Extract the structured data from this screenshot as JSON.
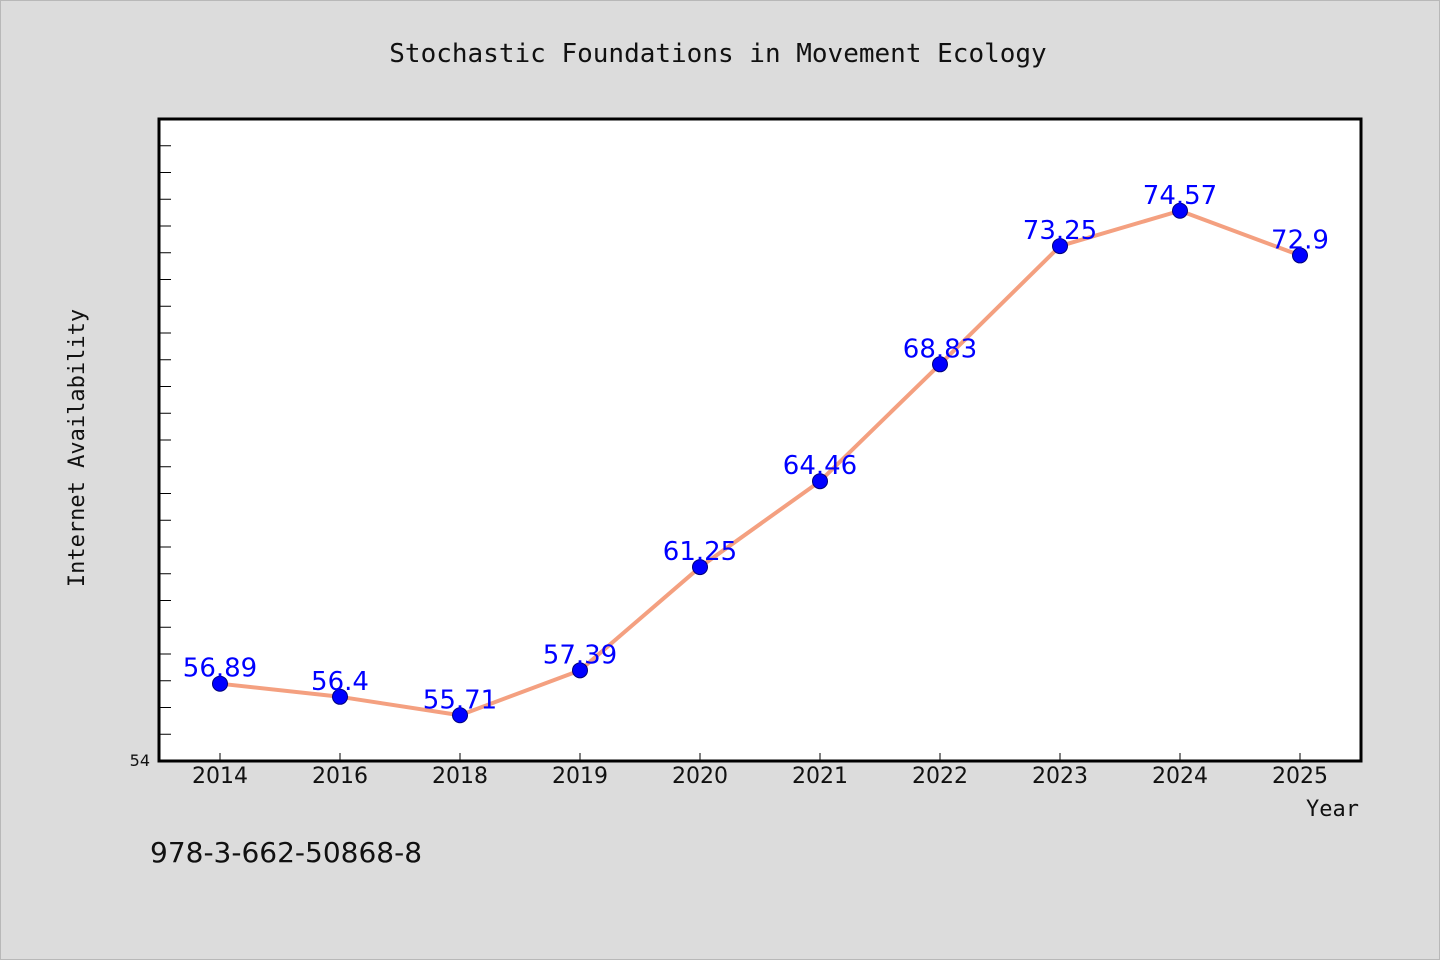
{
  "chart_data": {
    "type": "line",
    "title": "Stochastic Foundations in Movement Ecology",
    "xlabel": "Year",
    "ylabel": "Internet Availability",
    "categories": [
      "2014",
      "2016",
      "2018",
      "2019",
      "2020",
      "2021",
      "2022",
      "2023",
      "2024",
      "2025"
    ],
    "series": [
      {
        "values": [
          56.89,
          56.4,
          55.71,
          57.39,
          61.25,
          64.46,
          68.83,
          73.25,
          74.57,
          72.9
        ],
        "data_labels": [
          "56.89",
          "56.4",
          "55.71",
          "57.39",
          "61.25",
          "64.46",
          "68.83",
          "73.25",
          "74.57",
          "72.9"
        ],
        "line_color": "#f4a080",
        "marker_color": "#0000ff"
      }
    ],
    "ylim": [
      54,
      78
    ],
    "y_tick_label": "54",
    "grid": false,
    "legend": "none"
  },
  "footer": {
    "isbn": "978-3-662-50868-8"
  }
}
